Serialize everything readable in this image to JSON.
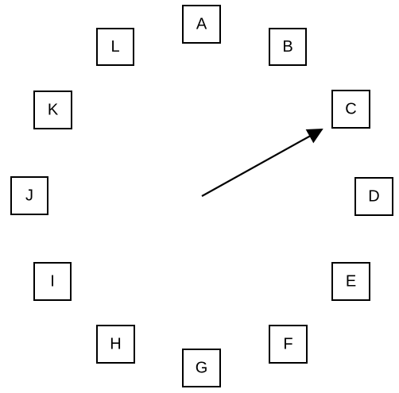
{
  "nodes": [
    "A",
    "B",
    "C",
    "D",
    "E",
    "F",
    "G",
    "H",
    "I",
    "J",
    "K",
    "L"
  ],
  "arrow": {
    "target": "C"
  },
  "colors": {
    "stroke": "#000000",
    "background": "#ffffff"
  }
}
